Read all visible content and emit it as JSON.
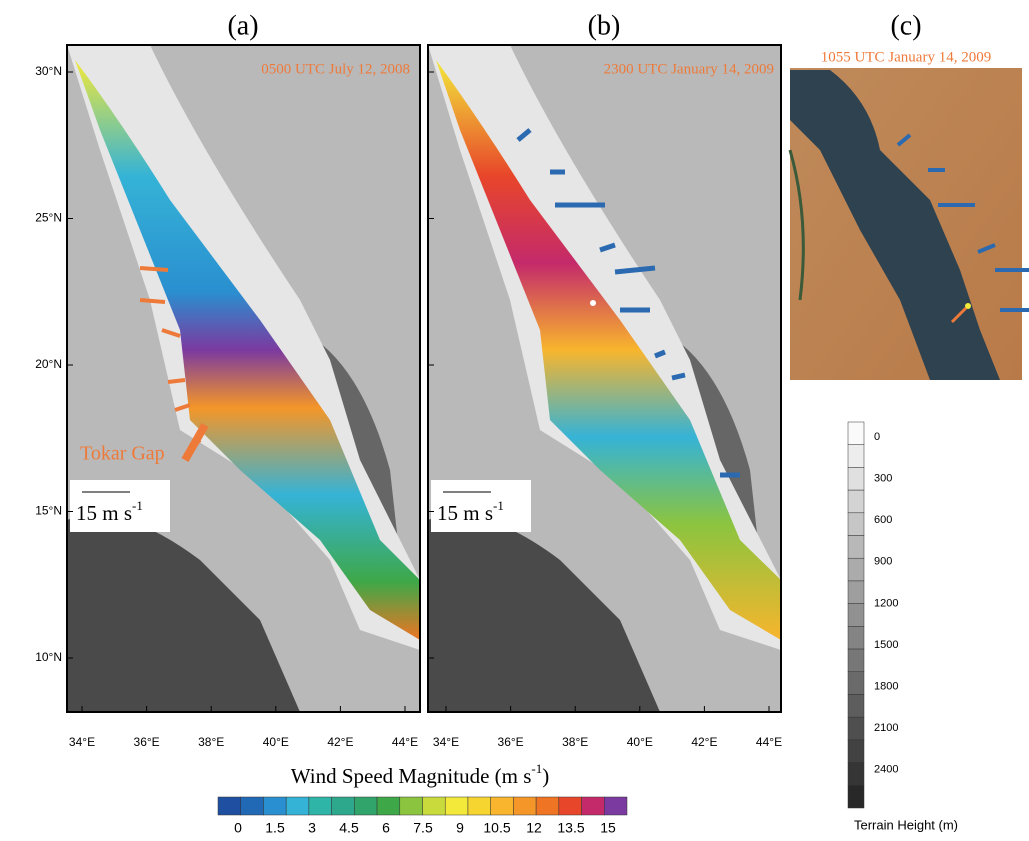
{
  "panels": [
    {
      "label": "(a)",
      "time": "0500 UTC July 12, 2008",
      "scale_vector": "15 m s",
      "scale_exp": "-1",
      "annotation": "Tokar Gap"
    },
    {
      "label": "(b)",
      "time": "2300 UTC January 14, 2009",
      "scale_vector": "15 m s",
      "scale_exp": "-1"
    },
    {
      "label": "(c)",
      "time": "1055 UTC January 14, 2009"
    }
  ],
  "lat_labels": [
    "30°N",
    "25°N",
    "20°N",
    "15°N",
    "10°N"
  ],
  "lon_labels": [
    "34°E",
    "36°E",
    "38°E",
    "40°E",
    "42°E",
    "44°E"
  ],
  "wind_colorbar": {
    "title": "Wind Speed Magnitude (m s",
    "title_exp": "-1",
    "title_end": ")",
    "labels": [
      "0",
      "1.5",
      "3",
      "4.5",
      "6",
      "7.5",
      "9",
      "10.5",
      "12",
      "13.5",
      "15"
    ],
    "colors": [
      "#1f4fa0",
      "#2168b5",
      "#2a8fd0",
      "#35b3d6",
      "#2fb5a8",
      "#2ea88d",
      "#30a46a",
      "#3ea848",
      "#8bc43f",
      "#c9db3c",
      "#f2e93a",
      "#f7d531",
      "#f8b52d",
      "#f49628",
      "#ef7423",
      "#e8462a",
      "#c42a6a",
      "#7b3aa0"
    ]
  },
  "terrain_colorbar": {
    "title": "Terrain Height  (m)",
    "labels": [
      "0",
      "300",
      "600",
      "900",
      "1200",
      "1500",
      "1800",
      "2100",
      "2400"
    ]
  }
}
